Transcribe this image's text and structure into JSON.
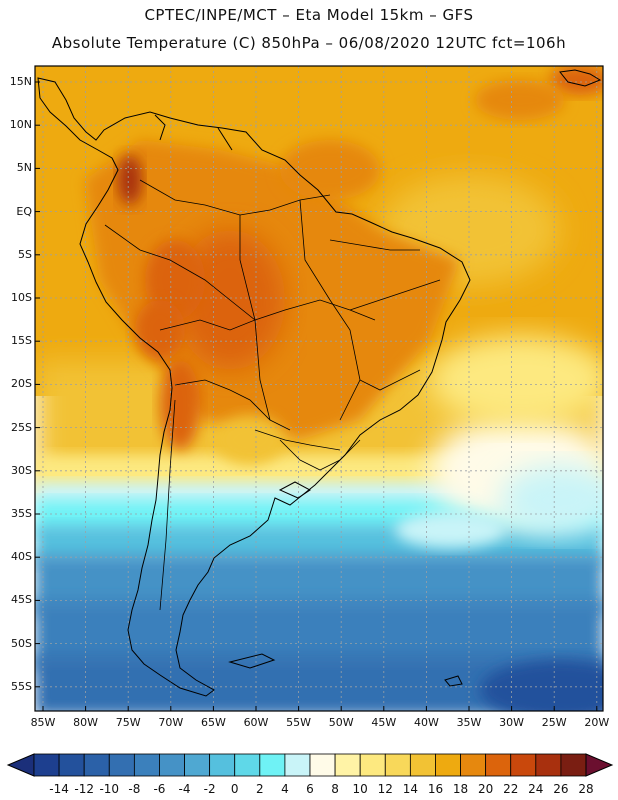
{
  "header": {
    "title_line1": "CPTEC/INPE/MCT –  Eta Model 15km – GFS",
    "title_line2": "Absolute Temperature (C) 850hPa – 06/08/2020 12UTC fct=106h"
  },
  "axes": {
    "lat_labels": [
      "15N",
      "10N",
      "5N",
      "EQ",
      "5S",
      "10S",
      "15S",
      "20S",
      "25S",
      "30S",
      "35S",
      "40S",
      "45S",
      "50S",
      "55S"
    ],
    "lon_labels": [
      "85W",
      "80W",
      "75W",
      "70W",
      "65W",
      "60W",
      "55W",
      "50W",
      "45W",
      "40W",
      "35W",
      "30W",
      "25W",
      "20W"
    ]
  },
  "colorbar": {
    "labels": [
      "-14",
      "-12",
      "-10",
      "-8",
      "-6",
      "-4",
      "-2",
      "0",
      "2",
      "4",
      "6",
      "8",
      "10",
      "12",
      "14",
      "16",
      "18",
      "20",
      "22",
      "24",
      "26",
      "28"
    ],
    "colors": [
      "#1d3f8f",
      "#23519c",
      "#2b61a8",
      "#336fb1",
      "#3b80bc",
      "#4592c6",
      "#4fa8d2",
      "#55c0de",
      "#5fd8e8",
      "#6ff2f5",
      "#c9f4f8",
      "#fffbe8",
      "#fff3a6",
      "#fde980",
      "#f8d85a",
      "#f2c234",
      "#eeaa10",
      "#e6880e",
      "#dc640c",
      "#c9480c",
      "#a8300e",
      "#7a1e12"
    ],
    "under_color": "#1b2f7a",
    "over_color": "#6b0f2f"
  }
}
